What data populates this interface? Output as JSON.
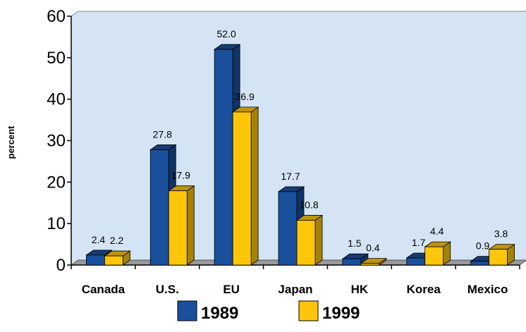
{
  "chart_data": {
    "type": "bar",
    "title": "",
    "xlabel": "",
    "ylabel": "percent",
    "ylim": [
      0,
      60
    ],
    "yticks": [
      "0",
      "10",
      "20",
      "30",
      "40",
      "50",
      "60"
    ],
    "categories": [
      "Canada",
      "U.S.",
      "EU",
      "Japan",
      "HK",
      "Korea",
      "Mexico"
    ],
    "series": [
      {
        "name": "1989",
        "color": "#1a4f9c",
        "values": [
          2.4,
          27.8,
          52.0,
          17.7,
          1.5,
          1.7,
          0.9
        ],
        "labels": [
          "2.4",
          "27.8",
          "52.0",
          "17.7",
          "1.5",
          "1.7",
          "0.9"
        ]
      },
      {
        "name": "1999",
        "color": "#fdc60a",
        "values": [
          2.2,
          17.9,
          36.9,
          10.8,
          0.4,
          4.4,
          3.8
        ],
        "labels": [
          "2.2",
          "17.9",
          "36.9",
          "10.8",
          "0.4",
          "4.4",
          "3.8"
        ]
      }
    ],
    "grid": false,
    "legend_position": "bottom",
    "plot_background": "#d4e4f4"
  }
}
